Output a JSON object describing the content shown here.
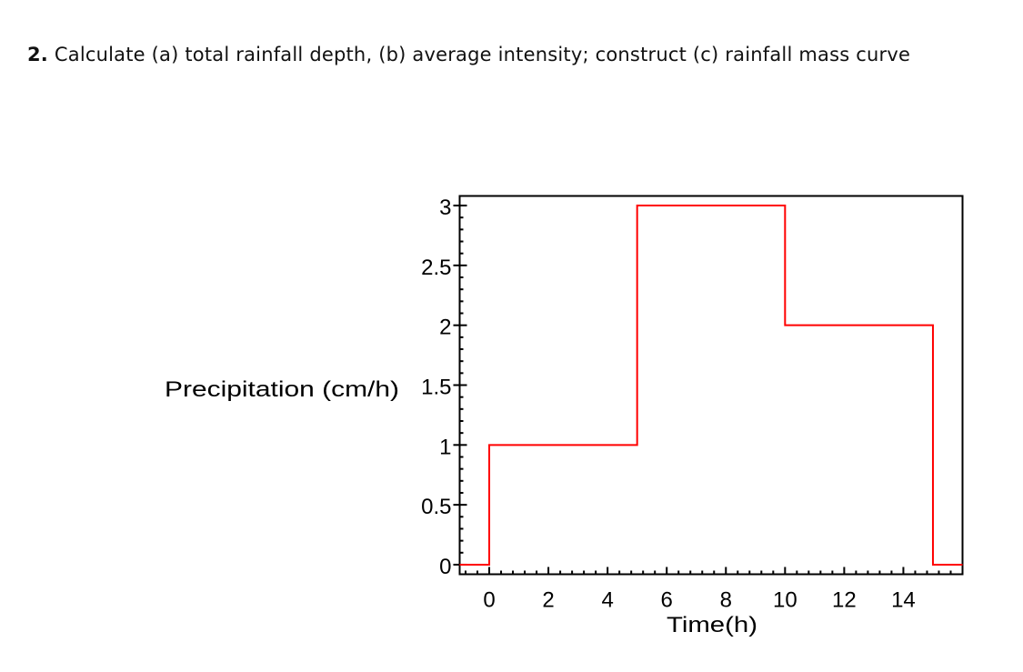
{
  "question": {
    "number": "2.",
    "text": "Calculate (a) total rainfall depth, (b) average intensity; construct (c) rainfall mass curve"
  },
  "chart_data": {
    "type": "line",
    "step": true,
    "title": "",
    "xlabel": "Time(h)",
    "ylabel": "Precipitation (cm/h)",
    "xlim": [
      -1,
      16
    ],
    "ylim": [
      -0.08,
      3.08
    ],
    "xticks": [
      0,
      2,
      4,
      6,
      8,
      10,
      12,
      14
    ],
    "xtick_labels": [
      "0",
      "2",
      "4",
      "6",
      "8",
      "10",
      "12",
      "14"
    ],
    "yticks": [
      0,
      0.5,
      1,
      1.5,
      2,
      2.5,
      3
    ],
    "ytick_labels": [
      "0",
      "0.5",
      "1",
      "1.5",
      "2",
      "2.5",
      "3"
    ],
    "grid": false,
    "series": [
      {
        "color": "#ff0000",
        "x": [
          -1,
          0,
          0,
          5,
          5,
          10,
          10,
          15,
          15,
          16
        ],
        "y": [
          0,
          0,
          1,
          1,
          3,
          3,
          2,
          2,
          0,
          0
        ]
      }
    ]
  }
}
